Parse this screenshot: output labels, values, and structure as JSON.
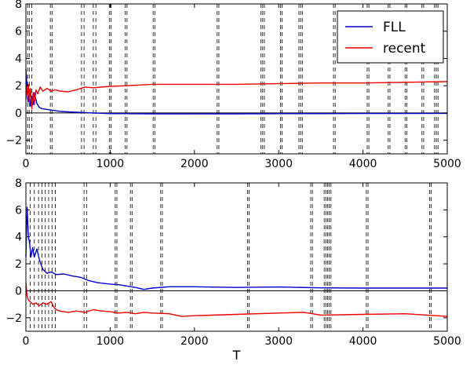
{
  "chart_data": [
    {
      "type": "line",
      "xlim": [
        0,
        5000
      ],
      "ylim": [
        -3,
        8
      ],
      "xticks": [
        0,
        1000,
        2000,
        3000,
        4000,
        5000
      ],
      "yticks": [
        -2,
        0,
        2,
        4,
        6,
        8
      ],
      "hline": 0,
      "legend": {
        "location": "top-right",
        "entries": [
          "FLL",
          "recent"
        ]
      },
      "colors": {
        "FLL": "#0000cc",
        "recent": "#ee0000",
        "hline": "#000000",
        "vlines": "#000000"
      },
      "vlines": [
        20,
        40,
        70,
        290,
        310,
        660,
        690,
        800,
        830,
        990,
        1010,
        1180,
        1200,
        1510,
        1530,
        2270,
        2290,
        2790,
        2810,
        2830,
        3020,
        3040,
        3240,
        3260,
        3280,
        3650,
        3670,
        4050,
        4070,
        4300,
        4320,
        4500,
        4520,
        4700,
        4720,
        4850,
        4870,
        4890
      ],
      "series": [
        {
          "name": "FLL",
          "x": [
            0,
            10,
            25,
            40,
            55,
            70,
            85,
            100,
            130,
            160,
            200,
            260,
            320,
            400,
            500,
            600,
            700,
            800,
            900,
            1000,
            1200,
            1500,
            2000,
            2500,
            3000,
            3500,
            4000,
            4500,
            5000
          ],
          "y": [
            3.2,
            2.3,
            0.8,
            1.4,
            0.5,
            1.2,
            0.6,
            1.5,
            0.7,
            0.4,
            0.3,
            0.25,
            0.2,
            0.12,
            0.08,
            0.05,
            0.03,
            0.0,
            -0.02,
            -0.05,
            -0.05,
            -0.06,
            -0.07,
            -0.06,
            -0.05,
            -0.05,
            -0.04,
            -0.04,
            -0.03
          ]
        },
        {
          "name": "recent",
          "x": [
            0,
            10,
            20,
            30,
            40,
            55,
            70,
            85,
            100,
            120,
            140,
            170,
            200,
            250,
            300,
            350,
            400,
            500,
            600,
            700,
            800,
            1000,
            1200,
            1500,
            2000,
            2500,
            3000,
            3500,
            4000,
            4500,
            5000
          ],
          "y": [
            1.0,
            2.0,
            1.3,
            2.1,
            0.8,
            1.8,
            0.3,
            1.5,
            0.6,
            1.7,
            1.4,
            1.9,
            1.6,
            1.8,
            1.6,
            1.7,
            1.6,
            1.55,
            1.7,
            1.9,
            1.85,
            1.95,
            2.0,
            2.1,
            2.1,
            2.1,
            2.15,
            2.2,
            2.2,
            2.25,
            2.3
          ]
        }
      ]
    },
    {
      "type": "line",
      "xlim": [
        0,
        5000
      ],
      "ylim": [
        -3,
        8
      ],
      "xticks": [
        0,
        1000,
        2000,
        3000,
        4000,
        5000
      ],
      "yticks": [
        -2,
        0,
        2,
        4,
        6,
        8
      ],
      "xlabel": "T",
      "hline": 0,
      "colors": {
        "FLL": "#0000cc",
        "recent": "#ee0000",
        "hline": "#000000",
        "vlines": "#000000"
      },
      "vlines": [
        50,
        100,
        150,
        190,
        230,
        270,
        310,
        350,
        690,
        720,
        1060,
        1080,
        1240,
        1260,
        1600,
        1620,
        2630,
        2650,
        3380,
        3400,
        3540,
        3560,
        3580,
        3600,
        3620,
        4040,
        4060,
        4790,
        4810
      ],
      "series": [
        {
          "name": "FLL",
          "x": [
            0,
            15,
            30,
            45,
            60,
            80,
            100,
            130,
            160,
            200,
            250,
            300,
            360,
            450,
            550,
            650,
            750,
            850,
            1000,
            1100,
            1200,
            1300,
            1400,
            1500,
            1700,
            2000,
            2500,
            3000,
            3500,
            4000,
            4500,
            5000
          ],
          "y": [
            2.5,
            6.2,
            4.0,
            3.5,
            2.5,
            3.2,
            2.5,
            3.1,
            2.3,
            1.6,
            1.3,
            1.4,
            1.2,
            1.25,
            1.1,
            1.0,
            0.75,
            0.6,
            0.5,
            0.45,
            0.35,
            0.25,
            0.1,
            0.2,
            0.3,
            0.3,
            0.25,
            0.28,
            0.22,
            0.2,
            0.2,
            0.2
          ]
        },
        {
          "name": "recent",
          "x": [
            0,
            15,
            30,
            50,
            80,
            120,
            160,
            200,
            250,
            300,
            330,
            360,
            400,
            500,
            600,
            700,
            800,
            900,
            1000,
            1100,
            1200,
            1300,
            1400,
            1500,
            1700,
            1850,
            2000,
            2500,
            3000,
            3300,
            3500,
            4000,
            4500,
            5000
          ],
          "y": [
            0.6,
            -0.4,
            -0.7,
            -0.8,
            -1.0,
            -0.9,
            -1.1,
            -0.9,
            -1.0,
            -0.8,
            -1.2,
            -1.4,
            -1.5,
            -1.6,
            -1.5,
            -1.6,
            -1.4,
            -1.5,
            -1.55,
            -1.65,
            -1.6,
            -1.7,
            -1.6,
            -1.65,
            -1.7,
            -1.9,
            -1.85,
            -1.75,
            -1.65,
            -1.6,
            -1.8,
            -1.75,
            -1.7,
            -1.9
          ]
        }
      ]
    }
  ]
}
